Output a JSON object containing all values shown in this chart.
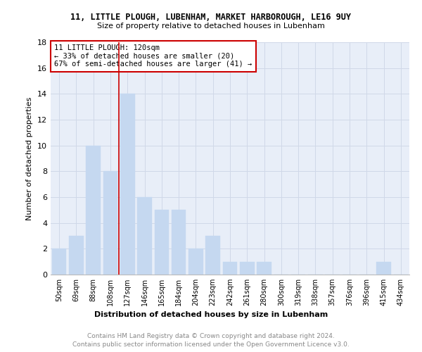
{
  "title": "11, LITTLE PLOUGH, LUBENHAM, MARKET HARBOROUGH, LE16 9UY",
  "subtitle": "Size of property relative to detached houses in Lubenham",
  "xlabel": "Distribution of detached houses by size in Lubenham",
  "ylabel": "Number of detached properties",
  "bar_color": "#c5d8f0",
  "bar_edgecolor": "#c5d8f0",
  "categories": [
    "50sqm",
    "69sqm",
    "88sqm",
    "108sqm",
    "127sqm",
    "146sqm",
    "165sqm",
    "184sqm",
    "204sqm",
    "223sqm",
    "242sqm",
    "261sqm",
    "280sqm",
    "300sqm",
    "319sqm",
    "338sqm",
    "357sqm",
    "376sqm",
    "396sqm",
    "415sqm",
    "434sqm"
  ],
  "values": [
    2,
    3,
    10,
    8,
    14,
    6,
    5,
    5,
    2,
    3,
    1,
    1,
    1,
    0,
    0,
    0,
    0,
    0,
    0,
    1,
    0
  ],
  "ylim": [
    0,
    18
  ],
  "yticks": [
    0,
    2,
    4,
    6,
    8,
    10,
    12,
    14,
    16,
    18
  ],
  "vline_index": 4,
  "vline_color": "#cc0000",
  "annotation_text": "11 LITTLE PLOUGH: 120sqm\n← 33% of detached houses are smaller (20)\n67% of semi-detached houses are larger (41) →",
  "annotation_box_color": "#ffffff",
  "annotation_box_edgecolor": "#cc0000",
  "footer_line1": "Contains HM Land Registry data © Crown copyright and database right 2024.",
  "footer_line2": "Contains public sector information licensed under the Open Government Licence v3.0.",
  "grid_color": "#d0d8e8",
  "background_color": "#e8eef8"
}
